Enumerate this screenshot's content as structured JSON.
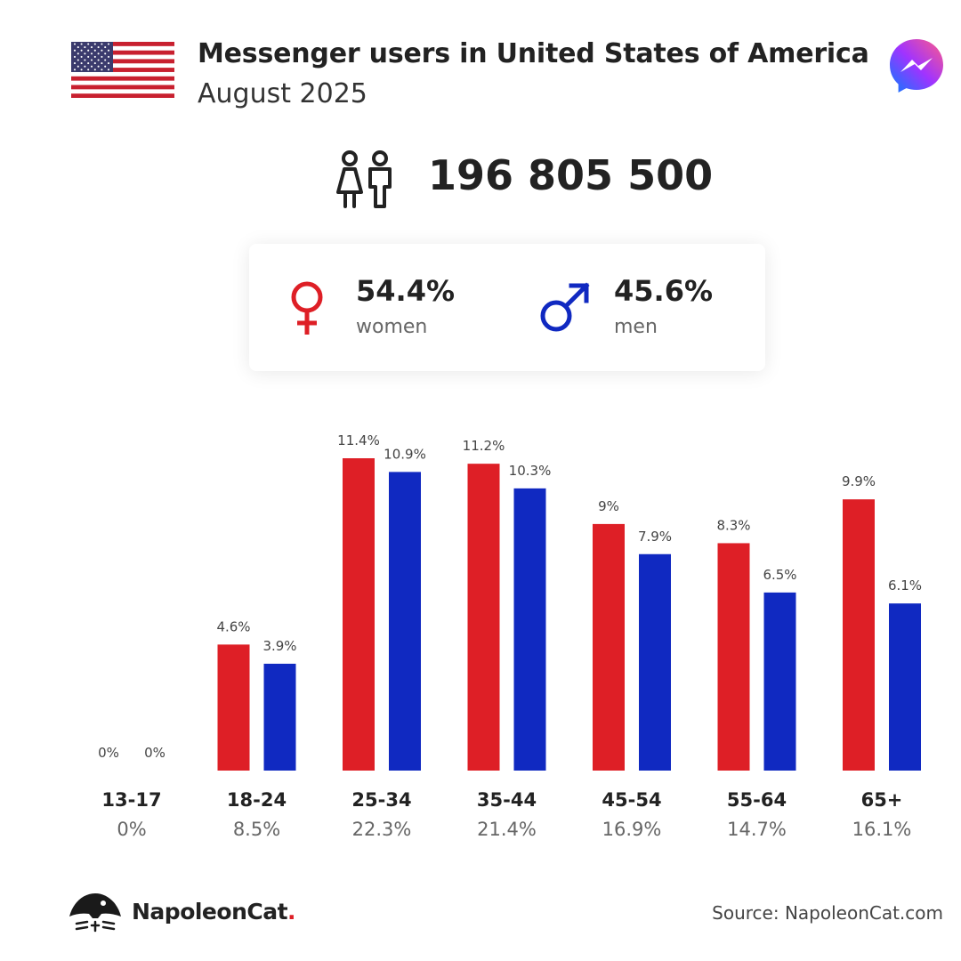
{
  "header": {
    "title": "Messenger users in United States of America",
    "subtitle": "August 2025"
  },
  "total_users": "196 805 500",
  "gender": {
    "women": {
      "percent": "54.4%",
      "label": "women",
      "color": "#de1f26"
    },
    "men": {
      "percent": "45.6%",
      "label": "men",
      "color": "#1029c1"
    }
  },
  "chart_data": {
    "type": "bar",
    "categories": [
      "13-17",
      "18-24",
      "25-34",
      "35-44",
      "45-54",
      "55-64",
      "65+"
    ],
    "category_totals": [
      "0%",
      "8.5%",
      "22.3%",
      "21.4%",
      "16.9%",
      "14.7%",
      "16.1%"
    ],
    "series": [
      {
        "name": "women",
        "color": "#de1f26",
        "values": [
          0,
          4.6,
          11.4,
          11.2,
          9,
          8.3,
          9.9
        ],
        "labels": [
          "0%",
          "4.6%",
          "11.4%",
          "11.2%",
          "9%",
          "8.3%",
          "9.9%"
        ]
      },
      {
        "name": "men",
        "color": "#1029c1",
        "values": [
          0,
          3.9,
          10.9,
          10.3,
          7.9,
          6.5,
          6.1
        ],
        "labels": [
          "0%",
          "3.9%",
          "10.9%",
          "10.3%",
          "7.9%",
          "6.5%",
          "6.1%"
        ]
      }
    ],
    "ylim": [
      0,
      11.4
    ],
    "grid": false
  },
  "footer": {
    "brand": "NapoleonCat",
    "brand_dot": ".",
    "source": "Source: NapoleonCat.com"
  },
  "icons": {
    "flag": "us-flag-icon",
    "logo": "messenger-logo-icon",
    "people": "people-icon",
    "female": "female-symbol-icon",
    "male": "male-symbol-icon",
    "brand": "napoleoncat-logo-icon"
  }
}
